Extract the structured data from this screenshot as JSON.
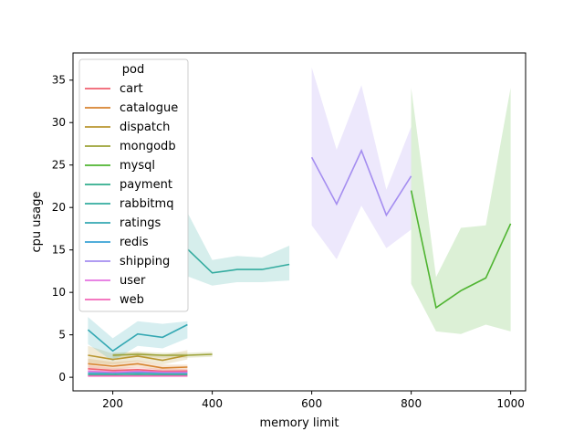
{
  "chart_data": {
    "type": "line",
    "title": "",
    "xlabel": "memory limit",
    "ylabel": "cpu usage",
    "xlim": [
      120,
      1030
    ],
    "ylim": [
      -1.6,
      38.2
    ],
    "x_ticks": [
      200,
      400,
      600,
      800,
      1000
    ],
    "y_ticks": [
      0,
      5,
      10,
      15,
      20,
      25,
      30,
      35
    ],
    "grid": false,
    "legend_title": "pod",
    "legend_position": "upper-left",
    "band": "confidence interval",
    "series": [
      {
        "name": "cart",
        "color": "#f0616f",
        "x": [
          150,
          200,
          250,
          300,
          350
        ],
        "y": [
          1.0,
          0.8,
          0.9,
          0.7,
          0.75
        ],
        "lo": [
          0.6,
          0.5,
          0.6,
          0.4,
          0.5
        ],
        "hi": [
          1.4,
          1.1,
          1.2,
          1.0,
          1.0
        ]
      },
      {
        "name": "catalogue",
        "color": "#d7832f",
        "x": [
          150,
          200,
          250,
          300,
          350
        ],
        "y": [
          1.6,
          1.3,
          1.6,
          1.1,
          1.2
        ],
        "lo": [
          1.1,
          0.9,
          1.2,
          0.8,
          0.9
        ],
        "hi": [
          2.2,
          1.8,
          2.0,
          1.5,
          1.5
        ]
      },
      {
        "name": "dispatch",
        "color": "#b99630",
        "x": [
          150,
          200,
          250,
          300,
          350
        ],
        "y": [
          2.6,
          2.1,
          2.5,
          2.0,
          2.6
        ],
        "lo": [
          1.7,
          1.5,
          1.9,
          1.5,
          2.1
        ],
        "hi": [
          3.7,
          2.8,
          3.0,
          2.6,
          3.2
        ]
      },
      {
        "name": "mongodb",
        "color": "#9ba236",
        "x": [
          200,
          250,
          300,
          350,
          400
        ],
        "y": [
          2.6,
          2.7,
          2.6,
          2.6,
          2.7
        ],
        "lo": [
          2.3,
          2.4,
          2.3,
          2.3,
          2.4
        ],
        "hi": [
          2.9,
          3.0,
          2.9,
          2.9,
          3.0
        ]
      },
      {
        "name": "mysql",
        "color": "#4fb431",
        "x": [
          800,
          850,
          900,
          950,
          1000
        ],
        "y": [
          22.0,
          8.2,
          10.2,
          11.7,
          18.1
        ],
        "lo": [
          11.0,
          5.4,
          5.1,
          6.2,
          5.4
        ],
        "hi": [
          34.1,
          11.8,
          17.6,
          17.9,
          34.1
        ]
      },
      {
        "name": "payment",
        "color": "#30ad8d",
        "x": [
          150,
          200,
          250,
          300,
          350
        ],
        "y": [
          0.3,
          0.3,
          0.35,
          0.3,
          0.3
        ],
        "lo": [
          0.15,
          0.15,
          0.2,
          0.15,
          0.15
        ],
        "hi": [
          0.45,
          0.45,
          0.5,
          0.45,
          0.45
        ]
      },
      {
        "name": "rabbitmq",
        "color": "#33ab9f",
        "x": [
          350,
          400,
          450,
          500,
          555
        ],
        "y": [
          15.1,
          12.3,
          12.7,
          12.7,
          13.3
        ],
        "lo": [
          11.9,
          10.8,
          11.2,
          11.2,
          11.4
        ],
        "hi": [
          19.4,
          13.8,
          14.3,
          14.1,
          15.5
        ]
      },
      {
        "name": "ratings",
        "color": "#34a8b3",
        "x": [
          150,
          200,
          250,
          300,
          350
        ],
        "y": [
          5.6,
          3.1,
          5.1,
          4.7,
          6.2
        ],
        "lo": [
          3.9,
          1.9,
          3.7,
          3.4,
          4.6
        ],
        "hi": [
          7.1,
          4.6,
          6.6,
          6.3,
          6.6
        ]
      },
      {
        "name": "redis",
        "color": "#38a3d4",
        "x": [
          150,
          200,
          250,
          300,
          350
        ],
        "y": [
          0.5,
          0.5,
          0.55,
          0.5,
          0.5
        ],
        "lo": [
          0.35,
          0.35,
          0.4,
          0.35,
          0.35
        ],
        "hi": [
          0.65,
          0.65,
          0.7,
          0.65,
          0.65
        ]
      },
      {
        "name": "shipping",
        "color": "#a58ef0",
        "x": [
          600,
          650,
          700,
          750,
          800
        ],
        "y": [
          25.9,
          20.4,
          26.7,
          19.1,
          23.7
        ],
        "lo": [
          17.9,
          13.9,
          20.2,
          15.2,
          17.4
        ],
        "hi": [
          36.5,
          26.8,
          34.4,
          22.1,
          29.5
        ]
      },
      {
        "name": "user",
        "color": "#e572e0",
        "x": [
          150,
          200,
          250,
          300,
          350
        ],
        "y": [
          0.7,
          0.6,
          0.7,
          0.6,
          0.6
        ],
        "lo": [
          0.5,
          0.4,
          0.5,
          0.4,
          0.4
        ],
        "hi": [
          0.9,
          0.8,
          0.9,
          0.8,
          0.8
        ]
      },
      {
        "name": "web",
        "color": "#f366b8",
        "x": [
          150,
          200,
          250,
          300,
          350
        ],
        "y": [
          0.15,
          0.15,
          0.15,
          0.15,
          0.15
        ],
        "lo": [
          0.05,
          0.05,
          0.05,
          0.05,
          0.05
        ],
        "hi": [
          0.25,
          0.25,
          0.25,
          0.25,
          0.25
        ]
      }
    ]
  }
}
